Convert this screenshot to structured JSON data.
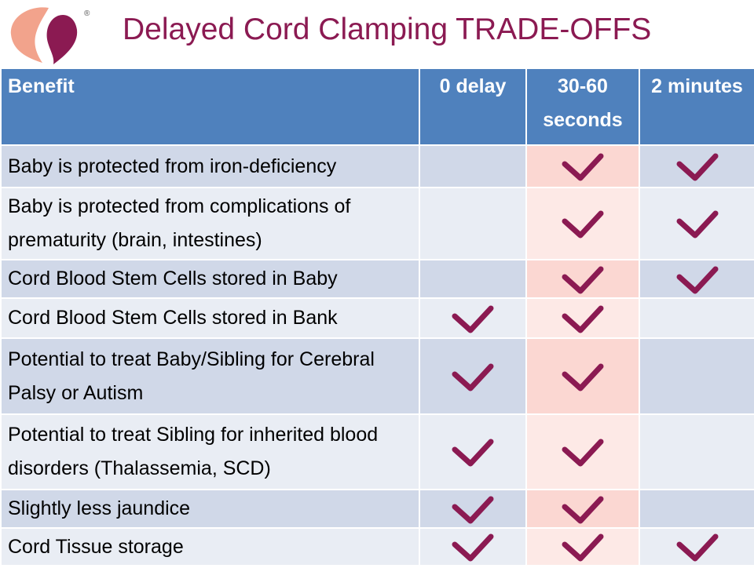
{
  "title": "Delayed Cord Clamping TRADE-OFFS",
  "logo": {
    "mark": "®"
  },
  "colors": {
    "title": "#8b1a52",
    "header_bg": "#4f81bd",
    "row_dark": "#d0d8e8",
    "row_light": "#e9edf4",
    "highlight_dark": "#fbd7d2",
    "highlight_light": "#fde9e6",
    "check": "#8b1a52",
    "logo_peach": "#f2a38c",
    "logo_plum": "#8b1a52"
  },
  "table": {
    "headers": {
      "benefit": "Benefit",
      "zero_delay": "0 delay",
      "thirty_sixty": "30-60 seconds",
      "two_minutes": "2 minutes"
    },
    "rows": [
      {
        "benefit": "Baby is protected from iron-deficiency",
        "zero_delay": false,
        "thirty_sixty": true,
        "two_minutes": true
      },
      {
        "benefit": "Baby is protected from complications of prematurity (brain, intestines)",
        "zero_delay": false,
        "thirty_sixty": true,
        "two_minutes": true
      },
      {
        "benefit": "Cord Blood Stem Cells stored in Baby",
        "zero_delay": false,
        "thirty_sixty": true,
        "two_minutes": true
      },
      {
        "benefit": "Cord Blood Stem Cells stored in Bank",
        "zero_delay": true,
        "thirty_sixty": true,
        "two_minutes": false
      },
      {
        "benefit": "Potential to treat Baby/Sibling for Cerebral Palsy or Autism",
        "zero_delay": true,
        "thirty_sixty": true,
        "two_minutes": false
      },
      {
        "benefit": "Potential to treat Sibling for inherited blood disorders (Thalassemia, SCD)",
        "zero_delay": true,
        "thirty_sixty": true,
        "two_minutes": false
      },
      {
        "benefit": "Slightly less jaundice",
        "zero_delay": true,
        "thirty_sixty": true,
        "two_minutes": false
      },
      {
        "benefit": "Cord Tissue storage",
        "zero_delay": true,
        "thirty_sixty": true,
        "two_minutes": true
      }
    ]
  }
}
